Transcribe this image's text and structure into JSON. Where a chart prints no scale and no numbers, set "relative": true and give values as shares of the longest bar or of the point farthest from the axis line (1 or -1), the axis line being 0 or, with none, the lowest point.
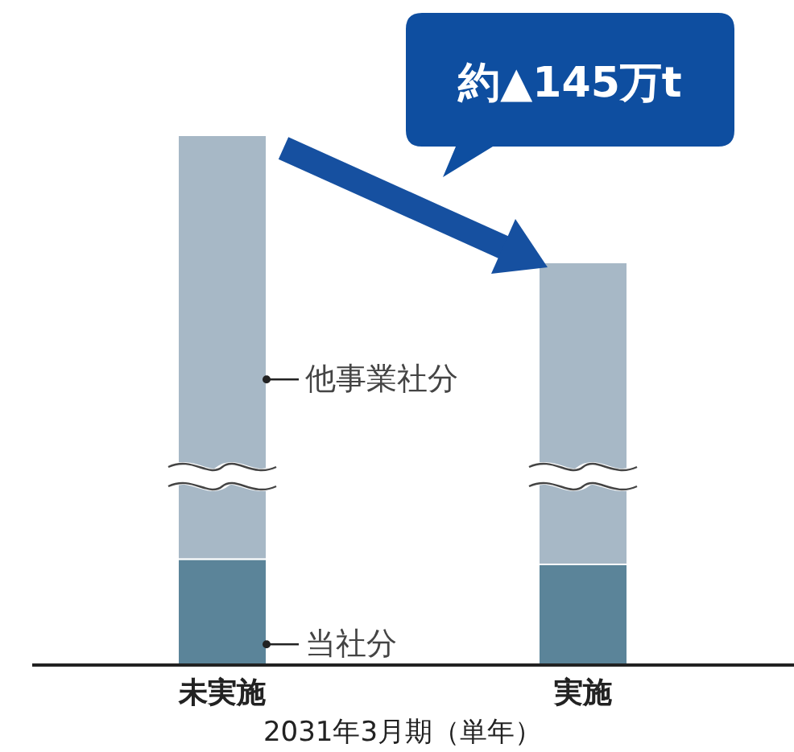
{
  "chart_data": {
    "type": "bar",
    "stacked": true,
    "relative": true,
    "categories": [
      "未実施",
      "実施"
    ],
    "xlabel": "2031年3月期（単年）",
    "annotations": [
      "約▲145万t"
    ],
    "legend": false,
    "series": [
      {
        "name": "当社分",
        "color": "#5b8499",
        "values": [
          0.2,
          0.19
        ]
      },
      {
        "name": "他事業社分",
        "color": "#a7b8c6",
        "values": [
          0.8,
          0.57
        ]
      }
    ]
  }
}
